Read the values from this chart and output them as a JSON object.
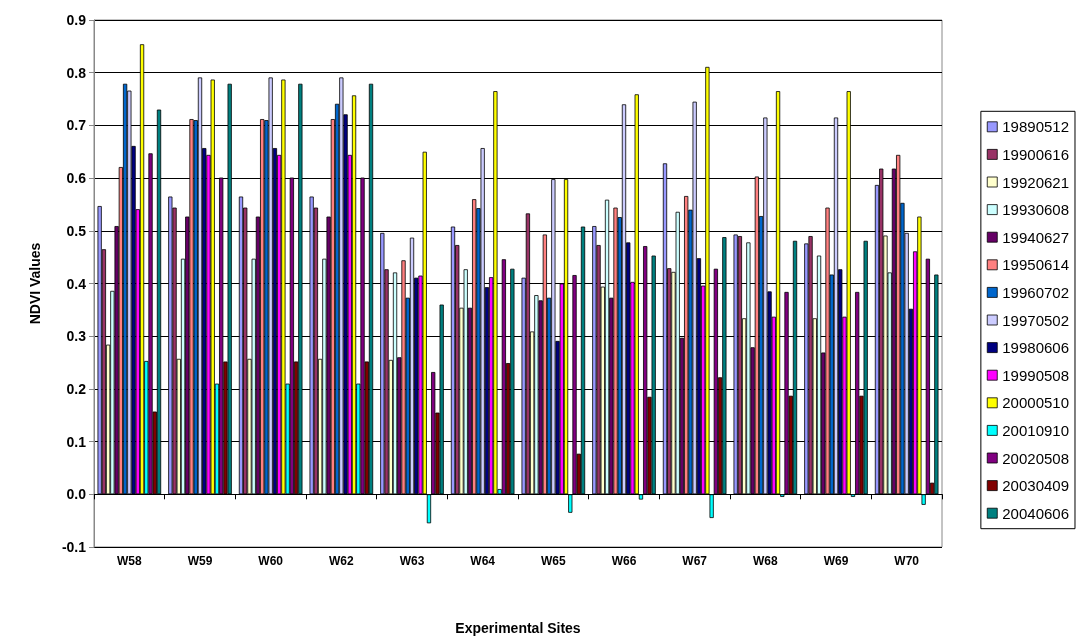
{
  "chart_data": {
    "type": "bar",
    "xlabel": "Experimental Sites",
    "ylabel": "NDVI Values",
    "categories": [
      "W58",
      "W59",
      "W60",
      "W62",
      "W63",
      "W64",
      "W65",
      "W66",
      "W67",
      "W68",
      "W69",
      "W70"
    ],
    "ylim": [
      -0.1,
      0.9
    ],
    "yticks": [
      -0.1,
      {
        "value": 0,
        "label": "0.0"
      },
      0.1,
      0.2,
      0.3,
      0.4,
      0.5,
      0.6,
      0.7,
      0.8,
      0.9
    ],
    "grid": "y",
    "legend": "right",
    "series": [
      {
        "name": "19890512",
        "color": "#9999ff",
        "values": [
          0.547,
          0.565,
          0.565,
          0.565,
          0.496,
          0.508,
          0.411,
          0.509,
          0.628,
          0.493,
          0.476,
          0.587
        ]
      },
      {
        "name": "19900616",
        "color": "#993366",
        "values": [
          0.465,
          0.544,
          0.544,
          0.544,
          0.427,
          0.473,
          0.533,
          0.473,
          0.429,
          0.49,
          0.49,
          0.618
        ]
      },
      {
        "name": "19920621",
        "color": "#ffffcc",
        "values": [
          0.284,
          0.257,
          0.257,
          0.257,
          0.255,
          0.354,
          0.309,
          0.394,
          0.422,
          0.334,
          0.334,
          0.491
        ]
      },
      {
        "name": "19930608",
        "color": "#ccffff",
        "values": [
          0.386,
          0.447,
          0.447,
          0.447,
          0.421,
          0.427,
          0.378,
          0.559,
          0.536,
          0.478,
          0.453,
          0.421
        ]
      },
      {
        "name": "19940627",
        "color": "#660066",
        "values": [
          0.509,
          0.527,
          0.527,
          0.527,
          0.26,
          0.354,
          0.368,
          0.373,
          0.297,
          0.279,
          0.269,
          0.618
        ]
      },
      {
        "name": "19950614",
        "color": "#ff8080",
        "values": [
          0.621,
          0.712,
          0.712,
          0.712,
          0.444,
          0.56,
          0.493,
          0.544,
          0.566,
          0.603,
          0.544,
          0.644
        ]
      },
      {
        "name": "19960702",
        "color": "#0066cc",
        "values": [
          0.779,
          0.71,
          0.71,
          0.741,
          0.373,
          0.543,
          0.373,
          0.526,
          0.54,
          0.528,
          0.417,
          0.553
        ]
      },
      {
        "name": "19970502",
        "color": "#ccccff",
        "values": [
          0.766,
          0.791,
          0.791,
          0.791,
          0.487,
          0.657,
          0.598,
          0.74,
          0.745,
          0.715,
          0.715,
          0.496
        ]
      },
      {
        "name": "19980606",
        "color": "#000080",
        "values": [
          0.661,
          0.657,
          0.657,
          0.721,
          0.411,
          0.393,
          0.291,
          0.478,
          0.448,
          0.385,
          0.427,
          0.352
        ]
      },
      {
        "name": "19990508",
        "color": "#ff00ff",
        "values": [
          0.541,
          0.644,
          0.644,
          0.644,
          0.415,
          0.412,
          0.4,
          0.403,
          0.396,
          0.337,
          0.337,
          0.461
        ]
      },
      {
        "name": "20000510",
        "color": "#ffff00",
        "values": [
          0.854,
          0.787,
          0.787,
          0.757,
          0.65,
          0.765,
          0.598,
          0.759,
          0.811,
          0.765,
          0.765,
          0.527
        ]
      },
      {
        "name": "20010910",
        "color": "#00ffff",
        "values": [
          0.253,
          0.21,
          0.21,
          0.21,
          -0.055,
          0.01,
          -0.035,
          -0.01,
          -0.045,
          -0.005,
          -0.005,
          -0.02
        ]
      },
      {
        "name": "20020508",
        "color": "#800080",
        "values": [
          0.647,
          0.601,
          0.601,
          0.601,
          0.232,
          0.446,
          0.416,
          0.471,
          0.428,
          0.384,
          0.384,
          0.447
        ]
      },
      {
        "name": "20030409",
        "color": "#800000",
        "values": [
          0.157,
          0.252,
          0.252,
          0.252,
          0.155,
          0.249,
          0.077,
          0.185,
          0.222,
          0.187,
          0.187,
          0.022
        ]
      },
      {
        "name": "20040606",
        "color": "#008080",
        "values": [
          0.73,
          0.779,
          0.779,
          0.779,
          0.36,
          0.428,
          0.508,
          0.453,
          0.488,
          0.481,
          0.481,
          0.417
        ]
      }
    ]
  }
}
